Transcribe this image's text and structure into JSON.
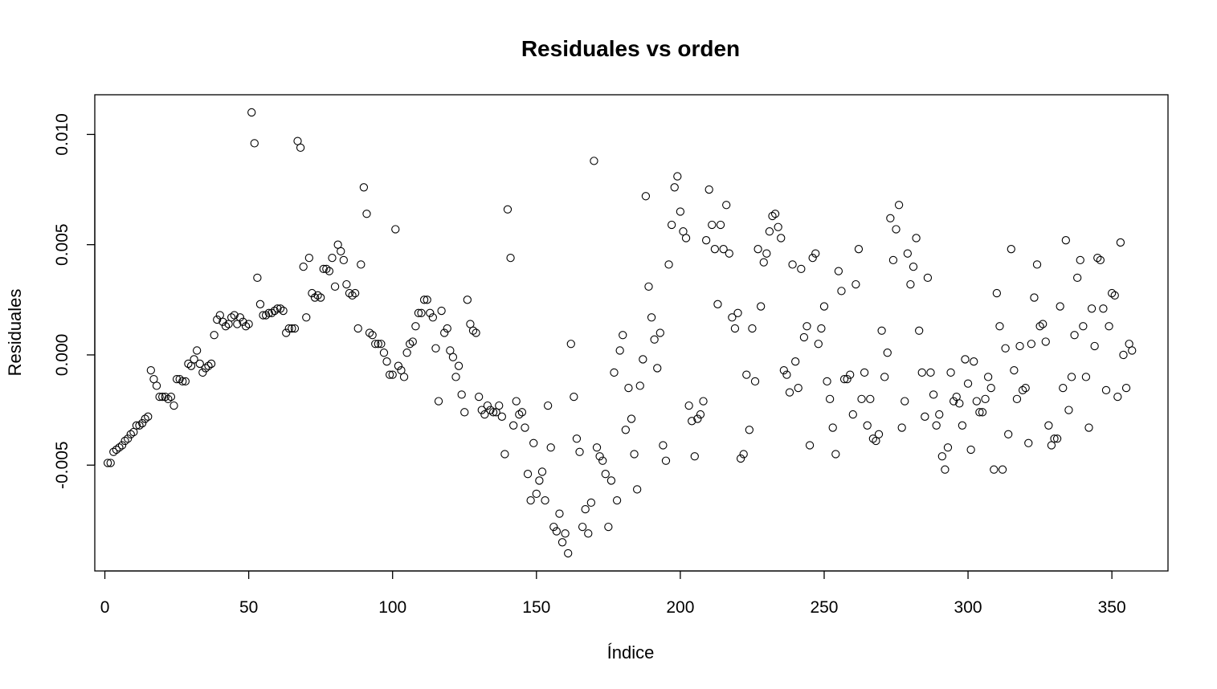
{
  "chart_data": {
    "type": "scatter",
    "title": "Residuales vs orden",
    "xlabel": "Índice",
    "ylabel": "Residuales",
    "xlim": [
      -3.5,
      369.5
    ],
    "ylim": [
      -0.0098,
      0.0118
    ],
    "xticks": [
      0,
      50,
      100,
      150,
      200,
      250,
      300,
      350
    ],
    "xtick_labels": [
      "0",
      "50",
      "100",
      "150",
      "200",
      "250",
      "300",
      "350"
    ],
    "yticks": [
      -0.005,
      0.0,
      0.005,
      0.01
    ],
    "ytick_labels": [
      "-0.005",
      "0.000",
      "0.005",
      "0.010"
    ],
    "grid": false,
    "marker": "open-circle",
    "points": [
      [
        1,
        -0.0049
      ],
      [
        2,
        -0.0049
      ],
      [
        3,
        -0.0044
      ],
      [
        4,
        -0.0043
      ],
      [
        5,
        -0.0042
      ],
      [
        6,
        -0.0041
      ],
      [
        7,
        -0.0039
      ],
      [
        8,
        -0.0038
      ],
      [
        9,
        -0.0036
      ],
      [
        10,
        -0.0035
      ],
      [
        11,
        -0.0032
      ],
      [
        12,
        -0.0032
      ],
      [
        13,
        -0.0031
      ],
      [
        14,
        -0.0029
      ],
      [
        15,
        -0.0028
      ],
      [
        16,
        -0.0007
      ],
      [
        17,
        -0.0011
      ],
      [
        18,
        -0.0014
      ],
      [
        19,
        -0.0019
      ],
      [
        20,
        -0.0019
      ],
      [
        21,
        -0.0019
      ],
      [
        22,
        -0.002
      ],
      [
        23,
        -0.0019
      ],
      [
        24,
        -0.0023
      ],
      [
        25,
        -0.0011
      ],
      [
        26,
        -0.0011
      ],
      [
        27,
        -0.0012
      ],
      [
        28,
        -0.0012
      ],
      [
        29,
        -0.0004
      ],
      [
        30,
        -0.0005
      ],
      [
        31,
        -0.0002
      ],
      [
        32,
        0.0002
      ],
      [
        33,
        -0.0004
      ],
      [
        34,
        -0.0008
      ],
      [
        35,
        -0.0006
      ],
      [
        36,
        -0.0005
      ],
      [
        37,
        -0.0004
      ],
      [
        38,
        0.0009
      ],
      [
        39,
        0.0016
      ],
      [
        40,
        0.0018
      ],
      [
        41,
        0.0015
      ],
      [
        42,
        0.0013
      ],
      [
        43,
        0.0014
      ],
      [
        44,
        0.0017
      ],
      [
        45,
        0.0018
      ],
      [
        46,
        0.0014
      ],
      [
        47,
        0.0017
      ],
      [
        48,
        0.0015
      ],
      [
        49,
        0.0013
      ],
      [
        50,
        0.0014
      ],
      [
        51,
        0.011
      ],
      [
        52,
        0.0096
      ],
      [
        53,
        0.0035
      ],
      [
        54,
        0.0023
      ],
      [
        55,
        0.0018
      ],
      [
        56,
        0.0018
      ],
      [
        57,
        0.0019
      ],
      [
        58,
        0.0019
      ],
      [
        59,
        0.002
      ],
      [
        60,
        0.0021
      ],
      [
        61,
        0.0021
      ],
      [
        62,
        0.002
      ],
      [
        63,
        0.001
      ],
      [
        64,
        0.0012
      ],
      [
        65,
        0.0012
      ],
      [
        66,
        0.0012
      ],
      [
        67,
        0.0097
      ],
      [
        68,
        0.0094
      ],
      [
        69,
        0.004
      ],
      [
        70,
        0.0017
      ],
      [
        71,
        0.0044
      ],
      [
        72,
        0.0028
      ],
      [
        73,
        0.0026
      ],
      [
        74,
        0.0027
      ],
      [
        75,
        0.0026
      ],
      [
        76,
        0.0039
      ],
      [
        77,
        0.0039
      ],
      [
        78,
        0.0038
      ],
      [
        79,
        0.0044
      ],
      [
        80,
        0.0031
      ],
      [
        81,
        0.005
      ],
      [
        82,
        0.0047
      ],
      [
        83,
        0.0043
      ],
      [
        84,
        0.0032
      ],
      [
        85,
        0.0028
      ],
      [
        86,
        0.0027
      ],
      [
        87,
        0.0028
      ],
      [
        88,
        0.0012
      ],
      [
        89,
        0.0041
      ],
      [
        90,
        0.0076
      ],
      [
        91,
        0.0064
      ],
      [
        92,
        0.001
      ],
      [
        93,
        0.0009
      ],
      [
        94,
        0.0005
      ],
      [
        95,
        0.0005
      ],
      [
        96,
        0.0005
      ],
      [
        97,
        0.0001
      ],
      [
        98,
        -0.0003
      ],
      [
        99,
        -0.0009
      ],
      [
        100,
        -0.0009
      ],
      [
        101,
        0.0057
      ],
      [
        102,
        -0.0005
      ],
      [
        103,
        -0.0007
      ],
      [
        104,
        -0.001
      ],
      [
        105,
        0.0001
      ],
      [
        106,
        0.0005
      ],
      [
        107,
        0.0006
      ],
      [
        108,
        0.0013
      ],
      [
        109,
        0.0019
      ],
      [
        110,
        0.0019
      ],
      [
        111,
        0.0025
      ],
      [
        112,
        0.0025
      ],
      [
        113,
        0.0019
      ],
      [
        114,
        0.0017
      ],
      [
        115,
        0.0003
      ],
      [
        116,
        -0.0021
      ],
      [
        117,
        0.002
      ],
      [
        118,
        0.001
      ],
      [
        119,
        0.0012
      ],
      [
        120,
        0.0002
      ],
      [
        121,
        -0.0001
      ],
      [
        122,
        -0.001
      ],
      [
        123,
        -0.0005
      ],
      [
        124,
        -0.0018
      ],
      [
        125,
        -0.0026
      ],
      [
        126,
        0.0025
      ],
      [
        127,
        0.0014
      ],
      [
        128,
        0.0011
      ],
      [
        129,
        0.001
      ],
      [
        130,
        -0.0019
      ],
      [
        131,
        -0.0025
      ],
      [
        132,
        -0.0027
      ],
      [
        133,
        -0.0023
      ],
      [
        134,
        -0.0025
      ],
      [
        135,
        -0.0026
      ],
      [
        136,
        -0.0026
      ],
      [
        137,
        -0.0023
      ],
      [
        138,
        -0.0028
      ],
      [
        139,
        -0.0045
      ],
      [
        140,
        0.0066
      ],
      [
        141,
        0.0044
      ],
      [
        142,
        -0.0032
      ],
      [
        143,
        -0.0021
      ],
      [
        144,
        -0.0027
      ],
      [
        145,
        -0.0026
      ],
      [
        146,
        -0.0033
      ],
      [
        147,
        -0.0054
      ],
      [
        148,
        -0.0066
      ],
      [
        149,
        -0.004
      ],
      [
        150,
        -0.0063
      ],
      [
        151,
        -0.0057
      ],
      [
        152,
        -0.0053
      ],
      [
        153,
        -0.0066
      ],
      [
        154,
        -0.0023
      ],
      [
        155,
        -0.0042
      ],
      [
        156,
        -0.0078
      ],
      [
        157,
        -0.008
      ],
      [
        158,
        -0.0072
      ],
      [
        159,
        -0.0085
      ],
      [
        160,
        -0.0081
      ],
      [
        161,
        -0.009
      ],
      [
        162,
        0.0005
      ],
      [
        163,
        -0.0019
      ],
      [
        164,
        -0.0038
      ],
      [
        165,
        -0.0044
      ],
      [
        166,
        -0.0078
      ],
      [
        167,
        -0.007
      ],
      [
        168,
        -0.0081
      ],
      [
        169,
        -0.0067
      ],
      [
        170,
        0.0088
      ],
      [
        171,
        -0.0042
      ],
      [
        172,
        -0.0046
      ],
      [
        173,
        -0.0048
      ],
      [
        174,
        -0.0054
      ],
      [
        175,
        -0.0078
      ],
      [
        176,
        -0.0057
      ],
      [
        177,
        -0.0008
      ],
      [
        178,
        -0.0066
      ],
      [
        179,
        0.0002
      ],
      [
        180,
        0.0009
      ],
      [
        181,
        -0.0034
      ],
      [
        182,
        -0.0015
      ],
      [
        183,
        -0.0029
      ],
      [
        184,
        -0.0045
      ],
      [
        185,
        -0.0061
      ],
      [
        186,
        -0.0014
      ],
      [
        187,
        -0.0002
      ],
      [
        188,
        0.0072
      ],
      [
        189,
        0.0031
      ],
      [
        190,
        0.0017
      ],
      [
        191,
        0.0007
      ],
      [
        192,
        -0.0006
      ],
      [
        193,
        0.001
      ],
      [
        194,
        -0.0041
      ],
      [
        195,
        -0.0048
      ],
      [
        196,
        0.0041
      ],
      [
        197,
        0.0059
      ],
      [
        198,
        0.0076
      ],
      [
        199,
        0.0081
      ],
      [
        200,
        0.0065
      ],
      [
        201,
        0.0056
      ],
      [
        202,
        0.0053
      ],
      [
        203,
        -0.0023
      ],
      [
        204,
        -0.003
      ],
      [
        205,
        -0.0046
      ],
      [
        206,
        -0.0029
      ],
      [
        207,
        -0.0027
      ],
      [
        208,
        -0.0021
      ],
      [
        209,
        0.0052
      ],
      [
        210,
        0.0075
      ],
      [
        211,
        0.0059
      ],
      [
        212,
        0.0048
      ],
      [
        213,
        0.0023
      ],
      [
        214,
        0.0059
      ],
      [
        215,
        0.0048
      ],
      [
        216,
        0.0068
      ],
      [
        217,
        0.0046
      ],
      [
        218,
        0.0017
      ],
      [
        219,
        0.0012
      ],
      [
        220,
        0.0019
      ],
      [
        221,
        -0.0047
      ],
      [
        222,
        -0.0045
      ],
      [
        223,
        -0.0009
      ],
      [
        224,
        -0.0034
      ],
      [
        225,
        0.0012
      ],
      [
        226,
        -0.0012
      ],
      [
        227,
        0.0048
      ],
      [
        228,
        0.0022
      ],
      [
        229,
        0.0042
      ],
      [
        230,
        0.0046
      ],
      [
        231,
        0.0056
      ],
      [
        232,
        0.0063
      ],
      [
        233,
        0.0064
      ],
      [
        234,
        0.0058
      ],
      [
        235,
        0.0053
      ],
      [
        236,
        -0.0007
      ],
      [
        237,
        -0.0009
      ],
      [
        238,
        -0.0017
      ],
      [
        239,
        0.0041
      ],
      [
        240,
        -0.0003
      ],
      [
        241,
        -0.0015
      ],
      [
        242,
        0.0039
      ],
      [
        243,
        0.0008
      ],
      [
        244,
        0.0013
      ],
      [
        245,
        -0.0041
      ],
      [
        246,
        0.0044
      ],
      [
        247,
        0.0046
      ],
      [
        248,
        0.0005
      ],
      [
        249,
        0.0012
      ],
      [
        250,
        0.0022
      ],
      [
        251,
        -0.0012
      ],
      [
        252,
        -0.002
      ],
      [
        253,
        -0.0033
      ],
      [
        254,
        -0.0045
      ],
      [
        255,
        0.0038
      ],
      [
        256,
        0.0029
      ],
      [
        257,
        -0.0011
      ],
      [
        258,
        -0.0011
      ],
      [
        259,
        -0.0009
      ],
      [
        260,
        -0.0027
      ],
      [
        261,
        0.0032
      ],
      [
        262,
        0.0048
      ],
      [
        263,
        -0.002
      ],
      [
        264,
        -0.0008
      ],
      [
        265,
        -0.0032
      ],
      [
        266,
        -0.002
      ],
      [
        267,
        -0.0038
      ],
      [
        268,
        -0.0039
      ],
      [
        269,
        -0.0036
      ],
      [
        270,
        0.0011
      ],
      [
        271,
        -0.001
      ],
      [
        272,
        0.0001
      ],
      [
        273,
        0.0062
      ],
      [
        274,
        0.0043
      ],
      [
        275,
        0.0057
      ],
      [
        276,
        0.0068
      ],
      [
        277,
        -0.0033
      ],
      [
        278,
        -0.0021
      ],
      [
        279,
        0.0046
      ],
      [
        280,
        0.0032
      ],
      [
        281,
        0.004
      ],
      [
        282,
        0.0053
      ],
      [
        283,
        0.0011
      ],
      [
        284,
        -0.0008
      ],
      [
        285,
        -0.0028
      ],
      [
        286,
        0.0035
      ],
      [
        287,
        -0.0008
      ],
      [
        288,
        -0.0018
      ],
      [
        289,
        -0.0032
      ],
      [
        290,
        -0.0027
      ],
      [
        291,
        -0.0046
      ],
      [
        292,
        -0.0052
      ],
      [
        293,
        -0.0042
      ],
      [
        294,
        -0.0008
      ],
      [
        295,
        -0.0021
      ],
      [
        296,
        -0.0019
      ],
      [
        297,
        -0.0022
      ],
      [
        298,
        -0.0032
      ],
      [
        299,
        -0.0002
      ],
      [
        300,
        -0.0013
      ],
      [
        301,
        -0.0043
      ],
      [
        302,
        -0.0003
      ],
      [
        303,
        -0.0021
      ],
      [
        304,
        -0.0026
      ],
      [
        305,
        -0.0026
      ],
      [
        306,
        -0.002
      ],
      [
        307,
        -0.001
      ],
      [
        308,
        -0.0015
      ],
      [
        309,
        -0.0052
      ],
      [
        310,
        0.0028
      ],
      [
        311,
        0.0013
      ],
      [
        312,
        -0.0052
      ],
      [
        313,
        0.0003
      ],
      [
        314,
        -0.0036
      ],
      [
        315,
        0.0048
      ],
      [
        316,
        -0.0007
      ],
      [
        317,
        -0.002
      ],
      [
        318,
        0.0004
      ],
      [
        319,
        -0.0016
      ],
      [
        320,
        -0.0015
      ],
      [
        321,
        -0.004
      ],
      [
        322,
        0.0005
      ],
      [
        323,
        0.0026
      ],
      [
        324,
        0.0041
      ],
      [
        325,
        0.0013
      ],
      [
        326,
        0.0014
      ],
      [
        327,
        0.0006
      ],
      [
        328,
        -0.0032
      ],
      [
        329,
        -0.0041
      ],
      [
        330,
        -0.0038
      ],
      [
        331,
        -0.0038
      ],
      [
        332,
        0.0022
      ],
      [
        333,
        -0.0015
      ],
      [
        334,
        0.0052
      ],
      [
        335,
        -0.0025
      ],
      [
        336,
        -0.001
      ],
      [
        337,
        0.0009
      ],
      [
        338,
        0.0035
      ],
      [
        339,
        0.0043
      ],
      [
        340,
        0.0013
      ],
      [
        341,
        -0.001
      ],
      [
        342,
        -0.0033
      ],
      [
        343,
        0.0021
      ],
      [
        344,
        0.0004
      ],
      [
        345,
        0.0044
      ],
      [
        346,
        0.0043
      ],
      [
        347,
        0.0021
      ],
      [
        348,
        -0.0016
      ],
      [
        349,
        0.0013
      ],
      [
        350,
        0.0028
      ],
      [
        351,
        0.0027
      ],
      [
        352,
        -0.0019
      ],
      [
        353,
        0.0051
      ],
      [
        354,
        0.0
      ],
      [
        355,
        -0.0015
      ],
      [
        356,
        0.0005
      ],
      [
        357,
        0.0002
      ]
    ]
  }
}
